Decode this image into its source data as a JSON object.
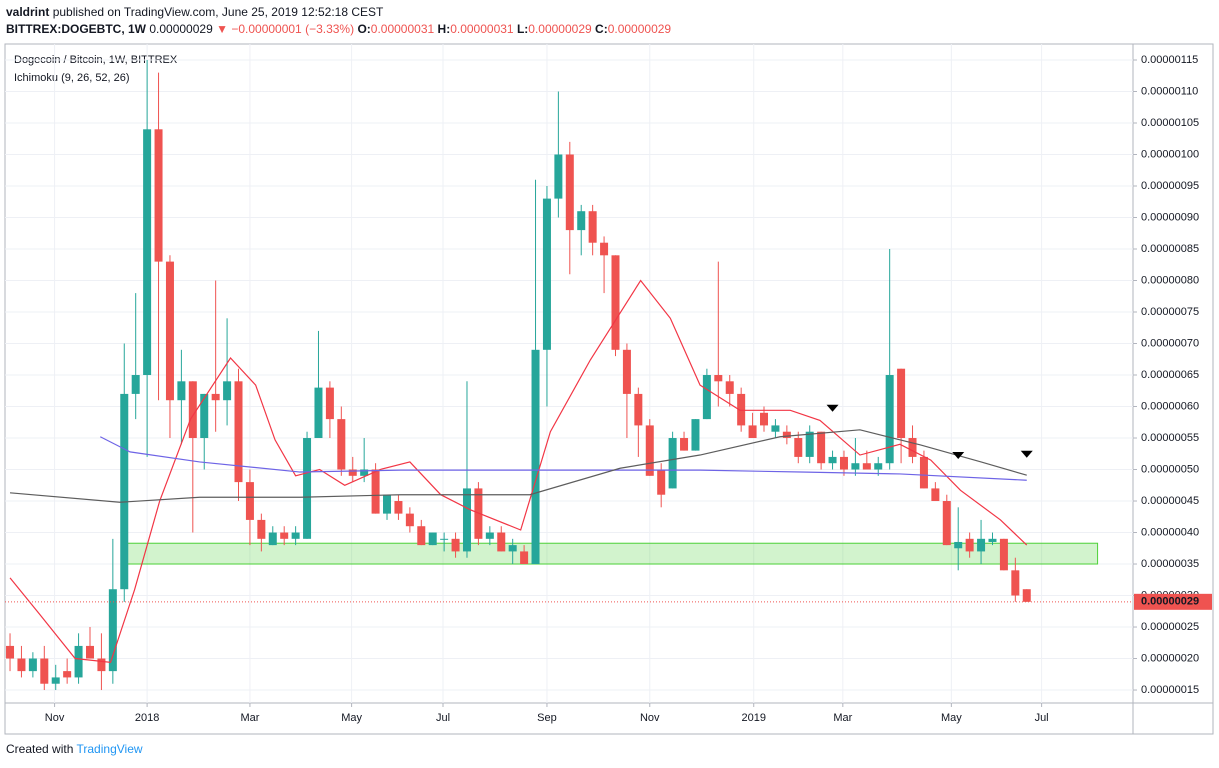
{
  "header": {
    "author": "valdrint",
    "published": "published on TradingView.com, June 25, 2019 12:52:18 CEST",
    "symbol": "BITTREX:DOGEBTC, 1W",
    "price": "0.00000029",
    "arrow": "▼",
    "change": "−0.00000001 (−3.33%)",
    "ohlc": [
      {
        "label": "O:",
        "value": "0.00000031"
      },
      {
        "label": "H:",
        "value": "0.00000031"
      },
      {
        "label": "L:",
        "value": "0.00000029"
      },
      {
        "label": "C:",
        "value": "0.00000029"
      }
    ]
  },
  "footer": {
    "created": "Created with",
    "brand": "TradingView"
  },
  "chart_data": {
    "type": "candlestick",
    "title": "Dogecoin / Bitcoin, 1W, BITTREX",
    "indicator": "Ichimoku (9, 26, 52, 26)",
    "up_color": "#26a69a",
    "down_color": "#ef5350",
    "open": [
      2.2e-07,
      2e-07,
      1.8e-07,
      2e-07,
      1.6e-07,
      1.8e-07,
      1.7e-07,
      2.2e-07,
      2e-07,
      1.8e-07,
      3.1e-07,
      6.2e-07,
      6.5e-07,
      1.04e-06,
      8.3e-07,
      6.1e-07,
      6.4e-07,
      5.5e-07,
      6.2e-07,
      6.1e-07,
      6.4e-07,
      4.8e-07,
      4.2e-07,
      3.8e-07,
      4e-07,
      3.9e-07,
      3.9e-07,
      5.5e-07,
      6.3e-07,
      5.8e-07,
      5e-07,
      4.9e-07,
      5e-07,
      4.3e-07,
      4.5e-07,
      4.3e-07,
      4.1e-07,
      3.8e-07,
      3.9e-07,
      3.9e-07,
      3.7e-07,
      4.7e-07,
      3.9e-07,
      4e-07,
      3.7e-07,
      3.7e-07,
      3.5e-07,
      6.9e-07,
      9.3e-07,
      1e-06,
      8.8e-07,
      9.1e-07,
      8.6e-07,
      8.4e-07,
      6.9e-07,
      6.2e-07,
      5.7e-07,
      5e-07,
      4.7e-07,
      5.5e-07,
      5.3e-07,
      5.8e-07,
      6.5e-07,
      6.4e-07,
      6.2e-07,
      5.7e-07,
      5.9e-07,
      5.6e-07,
      5.6e-07,
      5.5e-07,
      5.2e-07,
      5.6e-07,
      5.1e-07,
      5.2e-07,
      5e-07,
      5.1e-07,
      5e-07,
      5.1e-07,
      6.6e-07,
      5.5e-07,
      5.2e-07,
      4.7e-07,
      4.5e-07,
      3.75e-07,
      3.9e-07,
      3.7e-07,
      3.85e-07,
      3.9e-07,
      3.4e-07,
      3.1e-07
    ],
    "high": [
      2.4e-07,
      2.2e-07,
      2.1e-07,
      2.2e-07,
      1.9e-07,
      2e-07,
      2.4e-07,
      2.5e-07,
      2.4e-07,
      3.9e-07,
      7e-07,
      7.8e-07,
      1.15e-06,
      1.13e-06,
      8.4e-07,
      6.9e-07,
      6.4e-07,
      6.2e-07,
      8e-07,
      7.4e-07,
      6.6e-07,
      5e-07,
      4.3e-07,
      4.1e-07,
      4.1e-07,
      4.1e-07,
      5.6e-07,
      7.2e-07,
      6.4e-07,
      6e-07,
      5.2e-07,
      5.5e-07,
      5.1e-07,
      4.6e-07,
      4.6e-07,
      4.4e-07,
      4.2e-07,
      4e-07,
      4e-07,
      4e-07,
      6.4e-07,
      4.8e-07,
      4.1e-07,
      4.1e-07,
      3.9e-07,
      3.8e-07,
      9.6e-07,
      9.5e-07,
      1.1e-06,
      1.02e-06,
      9.2e-07,
      9.2e-07,
      8.7e-07,
      8.4e-07,
      7e-07,
      6.3e-07,
      5.8e-07,
      5.1e-07,
      5.6e-07,
      5.6e-07,
      5.8e-07,
      6.6e-07,
      8.3e-07,
      6.5e-07,
      6.3e-07,
      5.9e-07,
      6e-07,
      5.8e-07,
      5.7e-07,
      5.6e-07,
      5.7e-07,
      5.6e-07,
      5.3e-07,
      5.3e-07,
      5.5e-07,
      5.3e-07,
      5.2e-07,
      8.5e-07,
      6.6e-07,
      5.7e-07,
      5.3e-07,
      4.8e-07,
      4.6e-07,
      4.4e-07,
      4e-07,
      4.2e-07,
      4e-07,
      3.9e-07,
      3.6e-07,
      3.1e-07
    ],
    "low": [
      1.8e-07,
      1.7e-07,
      1.7e-07,
      1.5e-07,
      1.5e-07,
      1.6e-07,
      1.6e-07,
      2e-07,
      1.5e-07,
      1.6e-07,
      2.9e-07,
      5.8e-07,
      5.2e-07,
      6.1e-07,
      5.5e-07,
      5.4e-07,
      4e-07,
      5e-07,
      5.6e-07,
      5.7e-07,
      4.5e-07,
      3.8e-07,
      3.7e-07,
      3.8e-07,
      3.8e-07,
      3.8e-07,
      3.9e-07,
      5.5e-07,
      5.5e-07,
      4.9e-07,
      4.8e-07,
      4.8e-07,
      4.3e-07,
      4.2e-07,
      4.2e-07,
      4e-07,
      3.8e-07,
      3.8e-07,
      3.7e-07,
      3.6e-07,
      3.6e-07,
      3.8e-07,
      3.8e-07,
      3.7e-07,
      3.5e-07,
      3.5e-07,
      3.5e-07,
      6e-07,
      9e-07,
      8.1e-07,
      8.4e-07,
      8.4e-07,
      7.8e-07,
      6.8e-07,
      5.5e-07,
      5.2e-07,
      4.9e-07,
      4.4e-07,
      4.7e-07,
      5.3e-07,
      5.3e-07,
      5.8e-07,
      6e-07,
      6e-07,
      5.6e-07,
      5.5e-07,
      5.6e-07,
      5.5e-07,
      5.4e-07,
      5.1e-07,
      5.1e-07,
      5e-07,
      5e-07,
      4.9e-07,
      4.9e-07,
      5e-07,
      4.9e-07,
      5e-07,
      5.1e-07,
      5.1e-07,
      4.7e-07,
      4.5e-07,
      3.8e-07,
      3.4e-07,
      3.6e-07,
      3.5e-07,
      3.8e-07,
      3.4e-07,
      2.9e-07,
      2.9e-07
    ],
    "close": [
      2e-07,
      1.8e-07,
      2e-07,
      1.6e-07,
      1.7e-07,
      1.7e-07,
      2.2e-07,
      2e-07,
      1.8e-07,
      3.1e-07,
      6.2e-07,
      6.5e-07,
      1.04e-06,
      8.3e-07,
      6.1e-07,
      6.4e-07,
      5.5e-07,
      6.2e-07,
      6.1e-07,
      6.4e-07,
      4.8e-07,
      4.2e-07,
      3.9e-07,
      4e-07,
      3.9e-07,
      4e-07,
      5.5e-07,
      6.3e-07,
      5.8e-07,
      5e-07,
      4.9e-07,
      5e-07,
      4.3e-07,
      4.6e-07,
      4.3e-07,
      4.1e-07,
      3.8e-07,
      4e-07,
      3.9e-07,
      3.7e-07,
      4.7e-07,
      3.9e-07,
      4e-07,
      3.7e-07,
      3.8e-07,
      3.5e-07,
      6.9e-07,
      9.3e-07,
      1e-06,
      8.8e-07,
      9.1e-07,
      8.6e-07,
      8.4e-07,
      6.9e-07,
      6.2e-07,
      5.7e-07,
      4.9e-07,
      4.6e-07,
      5.5e-07,
      5.3e-07,
      5.8e-07,
      6.5e-07,
      6.4e-07,
      6.2e-07,
      5.7e-07,
      5.5e-07,
      5.7e-07,
      5.7e-07,
      5.5e-07,
      5.2e-07,
      5.6e-07,
      5.1e-07,
      5.2e-07,
      5e-07,
      5.1e-07,
      5e-07,
      5.1e-07,
      6.5e-07,
      5.5e-07,
      5.2e-07,
      4.7e-07,
      4.5e-07,
      3.8e-07,
      3.85e-07,
      3.7e-07,
      3.9e-07,
      3.9e-07,
      3.4e-07,
      3e-07,
      2.9e-07
    ],
    "lines": [
      {
        "color": "#f23645",
        "x": [
          0,
          2.6,
          5.7,
          8.8,
          10.9,
          13.1,
          15.8,
          19.3,
          21.5,
          23.2,
          25,
          27.1,
          29.3,
          32.4,
          35,
          37.7,
          40.3,
          44.7,
          47.3,
          50.8,
          55.2,
          57.8,
          60.4,
          63.9,
          68.3,
          70.9,
          74.4,
          77.9,
          80.6,
          83.2,
          86.7,
          89
        ],
        "values": [
          3.28e-07,
          2.7e-07,
          2e-07,
          1.94e-07,
          3.09e-07,
          4.5e-07,
          5.8e-07,
          6.77e-07,
          6.34e-07,
          5.47e-07,
          4.9e-07,
          5e-07,
          4.75e-07,
          5e-07,
          5.12e-07,
          4.6e-07,
          4.36e-07,
          4.04e-07,
          5.6e-07,
          6.74e-07,
          8e-07,
          7.4e-07,
          6.34e-07,
          5.94e-07,
          5.94e-07,
          5.78e-07,
          5.23e-07,
          5.4e-07,
          5.15e-07,
          4.67e-07,
          4.2e-07,
          3.8e-07
        ]
      },
      {
        "color": "#6e64e6",
        "x": [
          7.9,
          10.5,
          16.6,
          25.4,
          34.2,
          42.9,
          51.7,
          60.4,
          69.2,
          77.9,
          89
        ],
        "values": [
          5.52e-07,
          5.28e-07,
          5.12e-07,
          4.96e-07,
          4.99e-07,
          4.99e-07,
          4.99e-07,
          4.99e-07,
          4.96e-07,
          4.93e-07,
          4.83e-07
        ]
      },
      {
        "color": "#5d5d5d",
        "x": [
          0,
          9.6,
          16.6,
          25.4,
          34.2,
          45.5,
          53.4,
          60.4,
          67.4,
          74.4,
          79.7,
          85,
          89
        ],
        "values": [
          4.63e-07,
          4.48e-07,
          4.56e-07,
          4.56e-07,
          4.6e-07,
          4.6e-07,
          5.02e-07,
          5.23e-07,
          5.52e-07,
          5.63e-07,
          5.39e-07,
          5.12e-07,
          4.91e-07
        ]
      }
    ],
    "zone": {
      "x": [
        9.8,
        95.2
      ],
      "y": [
        3.5e-07,
        3.83e-07
      ],
      "color": "#4cd137"
    },
    "markers": {
      "x": [
        72,
        83,
        89
      ],
      "values": [
        5.98e-07,
        5.23e-07,
        5.25e-07
      ]
    },
    "last_price": {
      "value": 2.9e-07,
      "label": "0.00000029"
    },
    "xlim": [
      -0.44,
      98.3
    ],
    "ylim": [
      1.294e-07,
      1.1754e-06
    ],
    "xticks": [
      {
        "value": 3.9,
        "label": "Nov"
      },
      {
        "value": 12.0,
        "label": "2018"
      },
      {
        "value": 21.0,
        "label": "Mar"
      },
      {
        "value": 29.9,
        "label": "May"
      },
      {
        "value": 37.9,
        "label": "Jul"
      },
      {
        "value": 47.0,
        "label": "Sep"
      },
      {
        "value": 56.0,
        "label": "Nov"
      },
      {
        "value": 65.1,
        "label": "2019"
      },
      {
        "value": 72.9,
        "label": "Mar"
      },
      {
        "value": 82.4,
        "label": "May"
      },
      {
        "value": 90.3,
        "label": "Jul"
      }
    ],
    "yticks": [
      {
        "value": 1.5e-07,
        "label": "0.00000015"
      },
      {
        "value": 2e-07,
        "label": "0.00000020"
      },
      {
        "value": 2.5e-07,
        "label": "0.00000025"
      },
      {
        "value": 3e-07,
        "label": "0.00000030"
      },
      {
        "value": 3.5e-07,
        "label": "0.00000035"
      },
      {
        "value": 4e-07,
        "label": "0.00000040"
      },
      {
        "value": 4.5e-07,
        "label": "0.00000045"
      },
      {
        "value": 5e-07,
        "label": "0.00000050"
      },
      {
        "value": 5.5e-07,
        "label": "0.00000055"
      },
      {
        "value": 6e-07,
        "label": "0.00000060"
      },
      {
        "value": 6.5e-07,
        "label": "0.00000065"
      },
      {
        "value": 7e-07,
        "label": "0.00000070"
      },
      {
        "value": 7.5e-07,
        "label": "0.00000075"
      },
      {
        "value": 8e-07,
        "label": "0.00000080"
      },
      {
        "value": 8.5e-07,
        "label": "0.00000085"
      },
      {
        "value": 9e-07,
        "label": "0.00000090"
      },
      {
        "value": 9.5e-07,
        "label": "0.00000095"
      },
      {
        "value": 1e-06,
        "label": "0.00000100"
      },
      {
        "value": 1.05e-06,
        "label": "0.00000105"
      },
      {
        "value": 1.1e-06,
        "label": "0.00000110"
      },
      {
        "value": 1.15e-06,
        "label": "0.00000115"
      }
    ],
    "grid": true
  }
}
